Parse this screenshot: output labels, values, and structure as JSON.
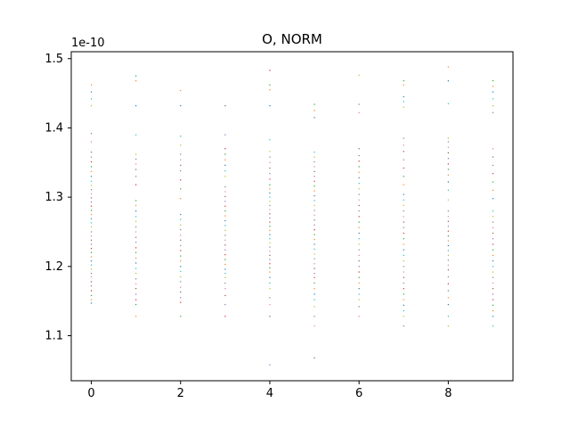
{
  "chart_data": {
    "type": "scatter",
    "title": "O, NORM",
    "xlabel": "",
    "ylabel": "",
    "y_scale_label": "1e-10",
    "y_multiplier": 1e-10,
    "xlim": [
      -0.45,
      9.45
    ],
    "ylim": [
      1.035,
      1.51
    ],
    "x_ticks": [
      0,
      2,
      4,
      6,
      8
    ],
    "x_tick_labels": [
      "0",
      "2",
      "4",
      "6",
      "8"
    ],
    "y_ticks": [
      1.1,
      1.2,
      1.3,
      1.4,
      1.5
    ],
    "y_tick_labels": [
      "1.1",
      "1.2",
      "1.3",
      "1.4",
      "1.5"
    ],
    "grid": false,
    "legend": "none",
    "marker_colors": [
      "#1f77b4",
      "#ff7f0e",
      "#2ca02c",
      "#d62728",
      "#9467bd",
      "#8c564b",
      "#e377c2",
      "#7f7f7f",
      "#bcbd22",
      "#17becf"
    ],
    "series": [
      {
        "name": "x=0",
        "x": 0,
        "values": [
          1.147,
          1.152,
          1.158,
          1.165,
          1.172,
          1.178,
          1.185,
          1.19,
          1.196,
          1.202,
          1.208,
          1.214,
          1.22,
          1.226,
          1.232,
          1.238,
          1.244,
          1.25,
          1.257,
          1.263,
          1.269,
          1.275,
          1.281,
          1.287,
          1.293,
          1.299,
          1.305,
          1.311,
          1.317,
          1.323,
          1.33,
          1.337,
          1.344,
          1.351,
          1.358,
          1.365,
          1.38,
          1.392,
          1.432,
          1.442,
          1.452,
          1.462
        ]
      },
      {
        "name": "x=1",
        "x": 1,
        "values": [
          1.128,
          1.145,
          1.152,
          1.16,
          1.168,
          1.175,
          1.182,
          1.19,
          1.197,
          1.205,
          1.212,
          1.22,
          1.227,
          1.235,
          1.242,
          1.25,
          1.257,
          1.265,
          1.272,
          1.28,
          1.288,
          1.295,
          1.318,
          1.33,
          1.34,
          1.348,
          1.355,
          1.362,
          1.39,
          1.432,
          1.468,
          1.475
        ]
      },
      {
        "name": "x=2",
        "x": 2,
        "values": [
          1.128,
          1.148,
          1.155,
          1.163,
          1.17,
          1.178,
          1.185,
          1.193,
          1.2,
          1.208,
          1.215,
          1.223,
          1.23,
          1.238,
          1.245,
          1.253,
          1.26,
          1.268,
          1.275,
          1.298,
          1.312,
          1.325,
          1.338,
          1.346,
          1.354,
          1.362,
          1.375,
          1.388,
          1.432,
          1.454
        ]
      },
      {
        "name": "x=3",
        "x": 3,
        "values": [
          1.128,
          1.145,
          1.158,
          1.168,
          1.176,
          1.184,
          1.19,
          1.196,
          1.203,
          1.21,
          1.217,
          1.224,
          1.231,
          1.238,
          1.245,
          1.252,
          1.259,
          1.266,
          1.273,
          1.28,
          1.287,
          1.294,
          1.301,
          1.308,
          1.315,
          1.33,
          1.338,
          1.346,
          1.354,
          1.362,
          1.37,
          1.39,
          1.432
        ]
      },
      {
        "name": "x=4",
        "x": 4,
        "values": [
          1.058,
          1.128,
          1.145,
          1.155,
          1.168,
          1.176,
          1.184,
          1.192,
          1.198,
          1.204,
          1.21,
          1.216,
          1.222,
          1.228,
          1.234,
          1.24,
          1.246,
          1.252,
          1.258,
          1.264,
          1.27,
          1.276,
          1.282,
          1.288,
          1.294,
          1.3,
          1.306,
          1.312,
          1.318,
          1.326,
          1.334,
          1.342,
          1.35,
          1.358,
          1.366,
          1.383,
          1.432,
          1.455,
          1.462,
          1.483
        ]
      },
      {
        "name": "x=5",
        "x": 5,
        "values": [
          1.068,
          1.114,
          1.128,
          1.142,
          1.152,
          1.16,
          1.168,
          1.176,
          1.184,
          1.19,
          1.197,
          1.204,
          1.211,
          1.218,
          1.225,
          1.232,
          1.239,
          1.246,
          1.253,
          1.26,
          1.267,
          1.274,
          1.281,
          1.288,
          1.295,
          1.302,
          1.309,
          1.316,
          1.323,
          1.33,
          1.337,
          1.344,
          1.351,
          1.358,
          1.365,
          1.415,
          1.425,
          1.434
        ]
      },
      {
        "name": "x=6",
        "x": 6,
        "values": [
          1.128,
          1.142,
          1.152,
          1.16,
          1.168,
          1.176,
          1.184,
          1.192,
          1.2,
          1.208,
          1.216,
          1.224,
          1.232,
          1.24,
          1.248,
          1.256,
          1.264,
          1.272,
          1.28,
          1.288,
          1.296,
          1.304,
          1.312,
          1.32,
          1.328,
          1.336,
          1.344,
          1.352,
          1.36,
          1.37,
          1.422,
          1.434,
          1.476
        ]
      },
      {
        "name": "x=7",
        "x": 7,
        "values": [
          1.114,
          1.128,
          1.136,
          1.144,
          1.152,
          1.16,
          1.168,
          1.176,
          1.184,
          1.192,
          1.2,
          1.208,
          1.216,
          1.224,
          1.232,
          1.24,
          1.248,
          1.256,
          1.264,
          1.272,
          1.28,
          1.288,
          1.296,
          1.304,
          1.318,
          1.33,
          1.342,
          1.354,
          1.366,
          1.375,
          1.385,
          1.43,
          1.438,
          1.445,
          1.462,
          1.468
        ]
      },
      {
        "name": "x=8",
        "x": 8,
        "values": [
          1.114,
          1.128,
          1.145,
          1.155,
          1.165,
          1.175,
          1.185,
          1.195,
          1.202,
          1.209,
          1.216,
          1.223,
          1.23,
          1.237,
          1.244,
          1.251,
          1.258,
          1.265,
          1.272,
          1.28,
          1.296,
          1.31,
          1.322,
          1.332,
          1.34,
          1.348,
          1.356,
          1.364,
          1.372,
          1.38,
          1.385,
          1.435,
          1.468,
          1.488
        ]
      },
      {
        "name": "x=9",
        "x": 9,
        "values": [
          1.114,
          1.128,
          1.136,
          1.144,
          1.152,
          1.16,
          1.168,
          1.176,
          1.184,
          1.192,
          1.2,
          1.208,
          1.216,
          1.224,
          1.232,
          1.24,
          1.248,
          1.256,
          1.264,
          1.272,
          1.28,
          1.298,
          1.31,
          1.322,
          1.334,
          1.346,
          1.358,
          1.37,
          1.422,
          1.432,
          1.442,
          1.452,
          1.46,
          1.468
        ]
      }
    ]
  }
}
